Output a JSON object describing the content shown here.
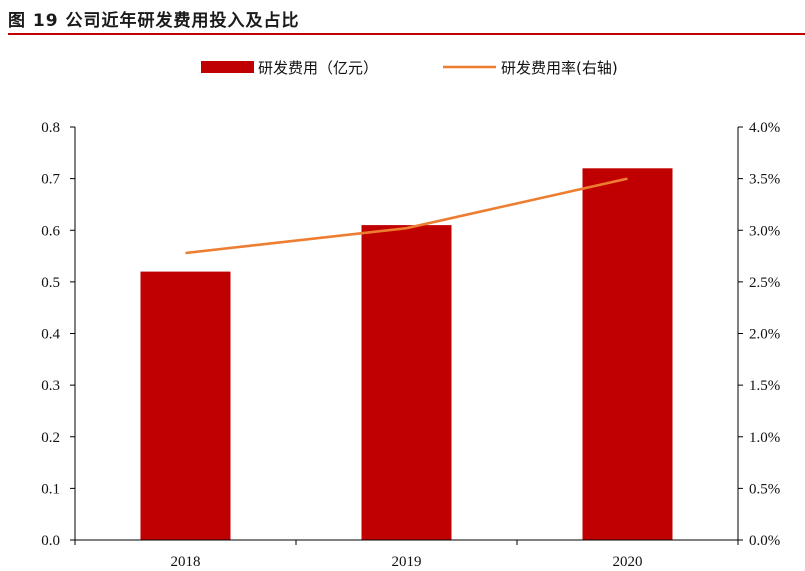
{
  "figure": {
    "title": "图 19 公司近年研发费用投入及占比"
  },
  "chart_data": {
    "type": "bar",
    "categories": [
      "2018",
      "2019",
      "2020"
    ],
    "series": [
      {
        "name": "研发费用（亿元）",
        "type": "bar",
        "axis": "left",
        "values": [
          0.52,
          0.61,
          0.72
        ],
        "color": "#c00000"
      },
      {
        "name": "研发费用率(右轴)",
        "type": "line",
        "axis": "right",
        "values": [
          0.0278,
          0.0302,
          0.035
        ],
        "color": "#ed7d31"
      }
    ],
    "y_left": {
      "lim": [
        0,
        0.8
      ],
      "ticks": [
        0.0,
        0.1,
        0.2,
        0.3,
        0.4,
        0.5,
        0.6,
        0.7,
        0.8
      ],
      "tick_labels": [
        "0.0",
        "0.1",
        "0.2",
        "0.3",
        "0.4",
        "0.5",
        "0.6",
        "0.7",
        "0.8"
      ]
    },
    "y_right": {
      "lim": [
        0,
        0.04
      ],
      "ticks": [
        0.0,
        0.005,
        0.01,
        0.015,
        0.02,
        0.025,
        0.03,
        0.035,
        0.04
      ],
      "tick_labels": [
        "0.0%",
        "0.5%",
        "1.0%",
        "1.5%",
        "2.0%",
        "2.5%",
        "3.0%",
        "3.5%",
        "4.0%"
      ]
    },
    "grid": false,
    "legend_position": "top-center"
  }
}
